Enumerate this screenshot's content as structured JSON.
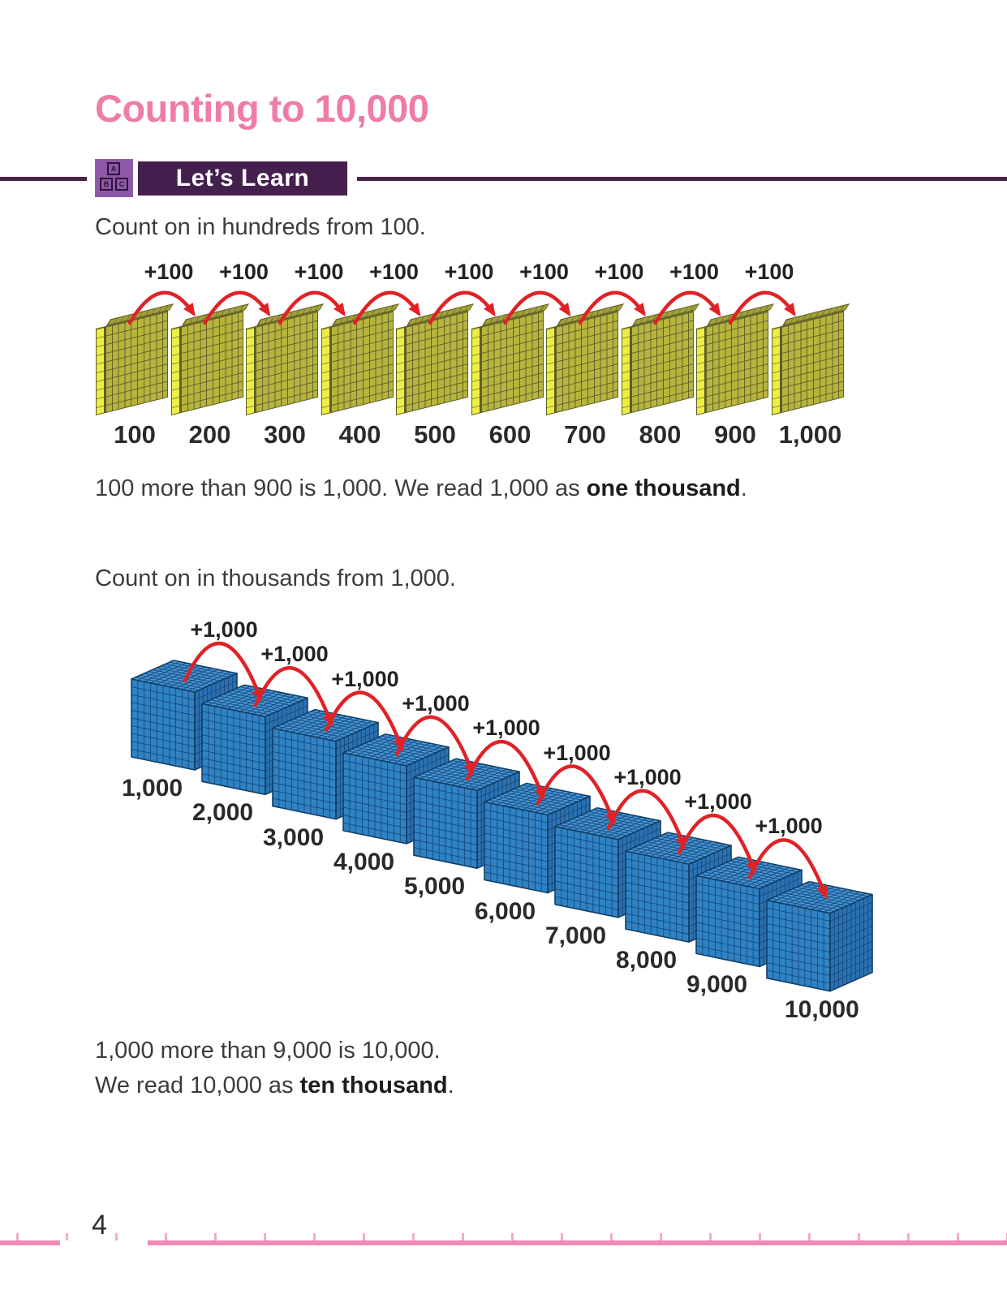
{
  "page": {
    "title": "Counting to 10,000",
    "page_number": "4"
  },
  "lets_learn": {
    "label": "Let’s Learn",
    "icon_letters": [
      "A",
      "B",
      "C"
    ]
  },
  "hundreds": {
    "intro": "Count on in hundreds from 100.",
    "arrow_label": "+100",
    "block_labels": [
      "100",
      "200",
      "300",
      "400",
      "500",
      "600",
      "700",
      "800",
      "900",
      "1,000"
    ],
    "caption": {
      "normal": "100 more than 900 is 1,000. We read 1,000 as ",
      "bold": "one thousand",
      "period": "."
    }
  },
  "thousands": {
    "intro": "Count on in thousands from 1,000.",
    "arrow_label": "+1,000",
    "block_labels": [
      "1,000",
      "2,000",
      "3,000",
      "4,000",
      "5,000",
      "6,000",
      "7,000",
      "8,000",
      "9,000",
      "10,000"
    ],
    "caption_line1": "1,000 more than 9,000 is 10,000.",
    "caption_line2": {
      "normal": "We read 10,000 as ",
      "bold": "ten thousand",
      "period": "."
    }
  },
  "colors": {
    "title_pink": "#ef7ba7",
    "banner_purple": "#451f4e",
    "icon_purple": "#8d58a8",
    "rule_purple": "#4a2348",
    "arrow_red": "#e02227",
    "flat_yellow": "#b7b43e",
    "flat_edge_yellow": "#edee45",
    "cube_blue_front": "#2f83c5",
    "cube_blue_top": "#4697d7",
    "cube_blue_side": "#2a72b2",
    "footer_pink": "#f18ab5"
  }
}
